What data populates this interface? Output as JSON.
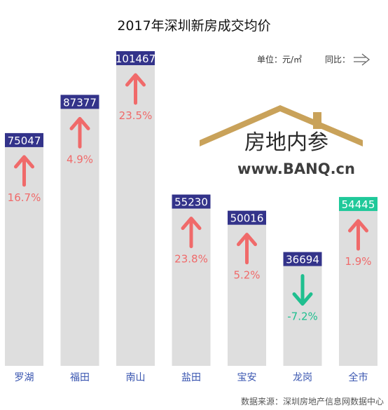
{
  "chart_data": {
    "type": "bar",
    "title": "2017年深圳新房成交均价",
    "unit_label": "单位：元/㎡",
    "compare_label": "同比：",
    "categories": [
      "罗湖",
      "福田",
      "南山",
      "盐田",
      "宝安",
      "龙岗",
      "全市"
    ],
    "values": [
      75047,
      87377,
      101467,
      55230,
      50016,
      36694,
      54445
    ],
    "value_labels": [
      "75047",
      "87377",
      "101467",
      "55230",
      "50016",
      "36694",
      "54445"
    ],
    "yoy_labels": [
      "16.7%",
      "4.9%",
      "23.5%",
      "23.8%",
      "5.2%",
      "-7.2%",
      "1.9%"
    ],
    "yoy_values": [
      16.7,
      4.9,
      23.5,
      23.8,
      5.2,
      -7.2,
      1.9
    ],
    "ylim": [
      0,
      101467
    ],
    "grid": false,
    "legend": "none",
    "colors": {
      "bar": "#dedede",
      "label_box": "#33338a",
      "label_box_city": "#1fc99a",
      "up": "#f06a6a",
      "down": "#1fbf8f"
    }
  },
  "watermark": {
    "cn": "房地内参",
    "url": "www.BANQ.cn"
  },
  "source": "数据来源：深圳房地产信息网数据中心"
}
